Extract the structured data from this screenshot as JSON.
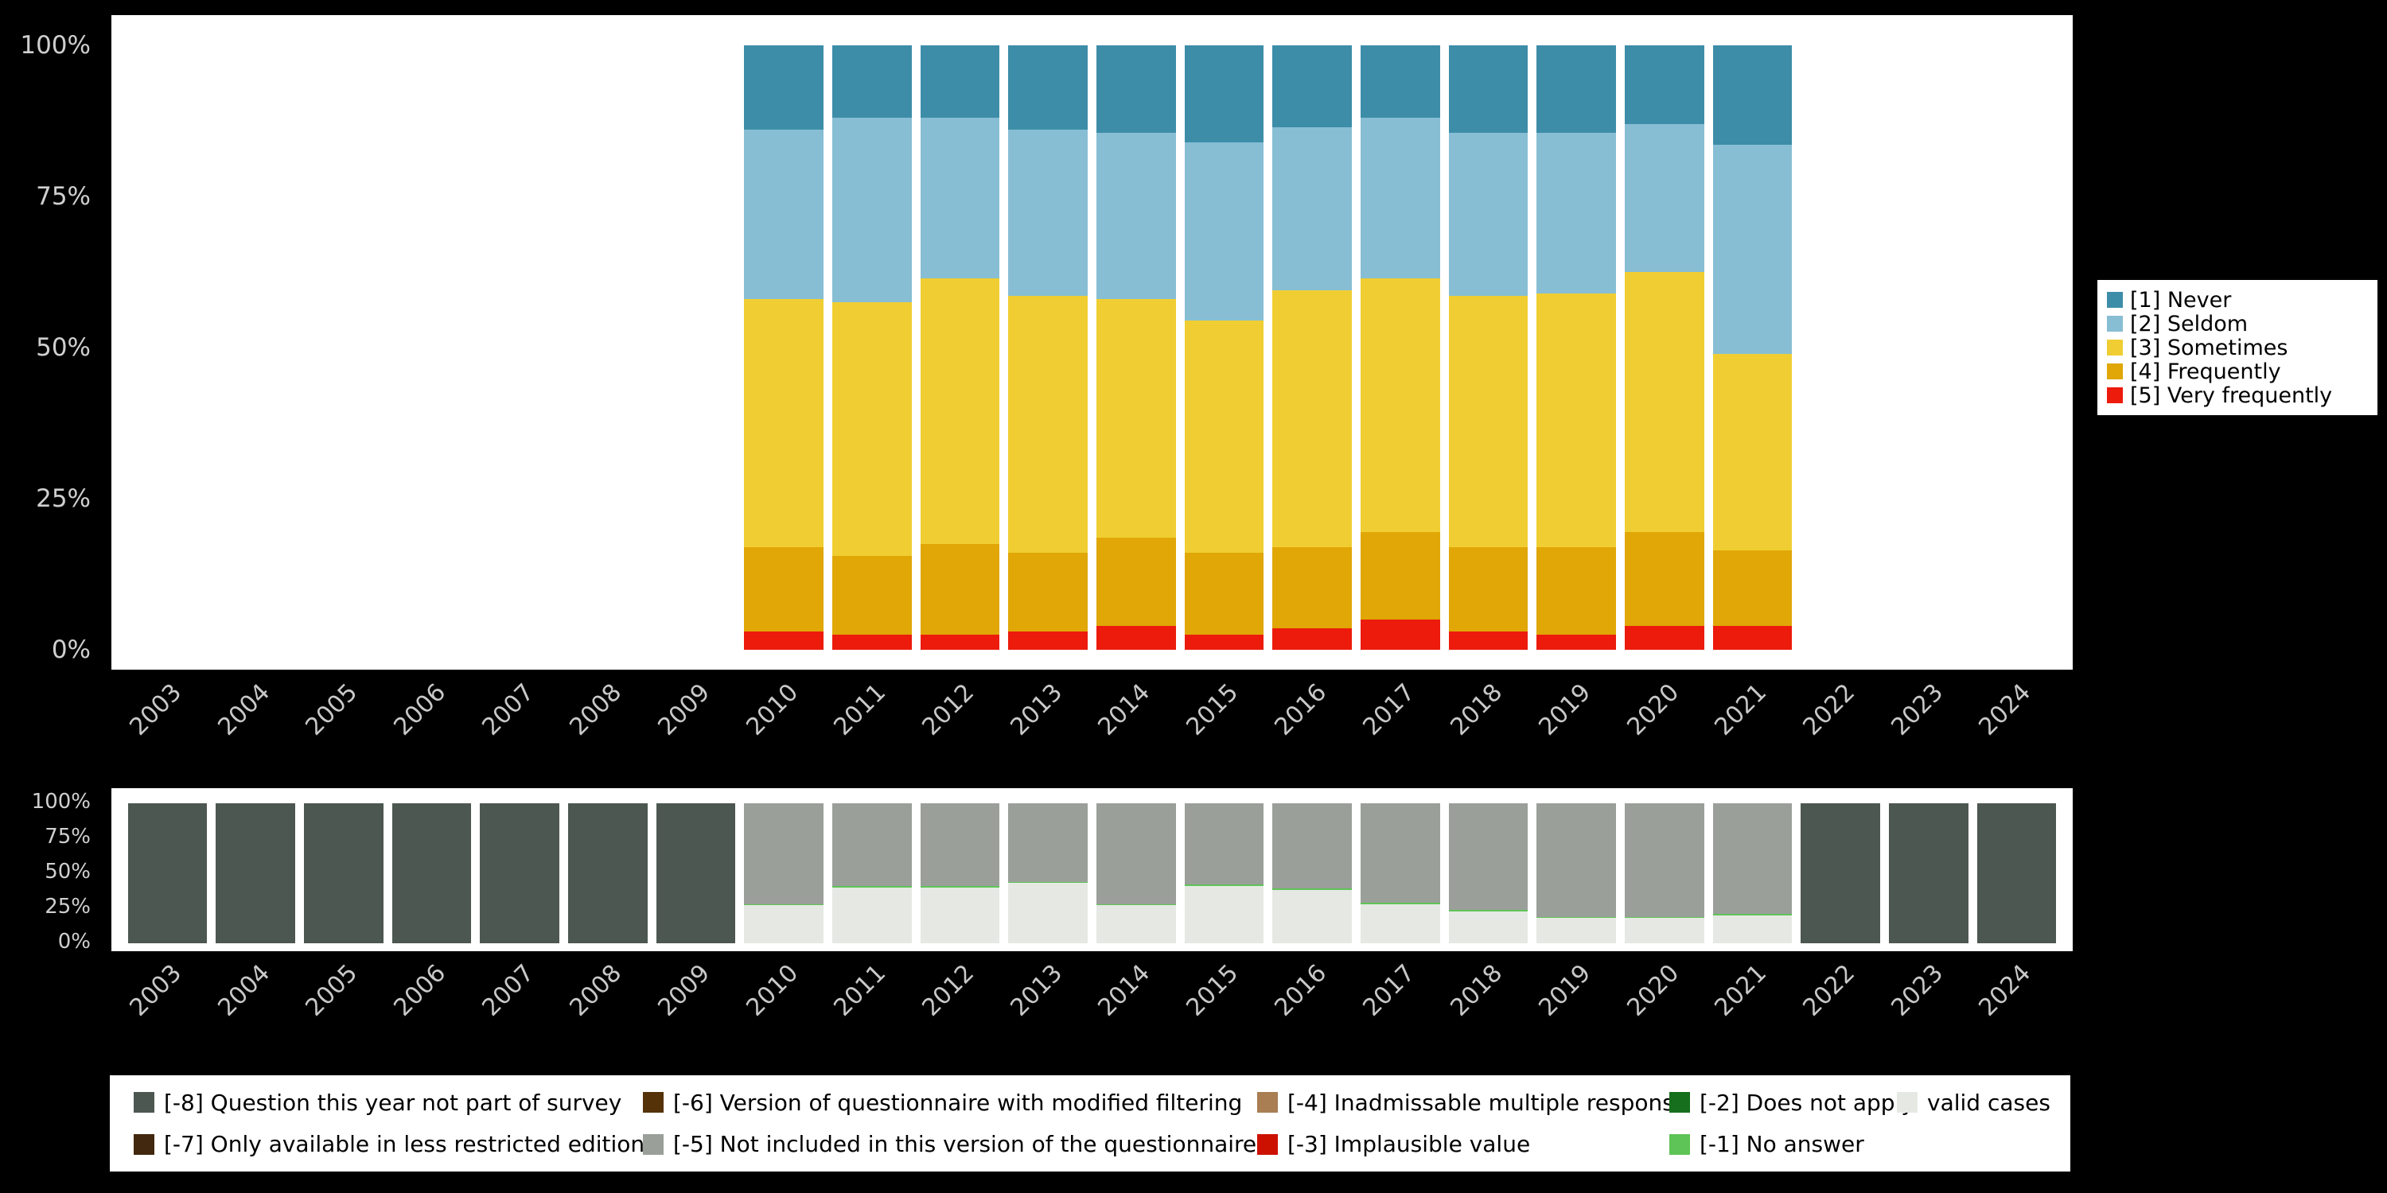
{
  "page": {
    "background": "#000000",
    "panel_background": "#ffffff",
    "axis_text_color": "#c8c8c8"
  },
  "chart_data": [
    {
      "id": "main",
      "type": "bar",
      "stacked": true,
      "unit": "percent",
      "ylim": [
        0,
        100
      ],
      "grid": false,
      "categories": [
        "2003",
        "2004",
        "2005",
        "2006",
        "2007",
        "2008",
        "2009",
        "2010",
        "2011",
        "2012",
        "2013",
        "2014",
        "2015",
        "2016",
        "2017",
        "2018",
        "2019",
        "2020",
        "2021",
        "2022",
        "2023",
        "2024"
      ],
      "yticks": [
        {
          "label": "0%",
          "value": 0
        },
        {
          "label": "25%",
          "value": 25
        },
        {
          "label": "50%",
          "value": 50
        },
        {
          "label": "75%",
          "value": 75
        },
        {
          "label": "100%",
          "value": 100
        }
      ],
      "series": [
        {
          "name": "[5] Very frequently",
          "color": "#ec1b0c",
          "values": [
            0,
            0,
            0,
            0,
            0,
            0,
            0,
            3,
            2.5,
            2.5,
            3,
            4,
            2.5,
            3.5,
            5,
            3,
            2.5,
            4,
            4,
            0,
            0,
            0
          ]
        },
        {
          "name": "[4] Frequently",
          "color": "#e0a706",
          "values": [
            0,
            0,
            0,
            0,
            0,
            0,
            0,
            14,
            13,
            15,
            13,
            14.5,
            13.5,
            13.5,
            14.5,
            14,
            14.5,
            15.5,
            12.5,
            0,
            0,
            0
          ]
        },
        {
          "name": "[3] Sometimes",
          "color": "#f0ce33",
          "values": [
            0,
            0,
            0,
            0,
            0,
            0,
            0,
            41,
            42,
            44,
            42.5,
            39.5,
            38.5,
            42.5,
            42,
            41.5,
            42,
            43,
            32.5,
            0,
            0,
            0
          ]
        },
        {
          "name": "[2] Seldom",
          "color": "#87bed4",
          "values": [
            0,
            0,
            0,
            0,
            0,
            0,
            0,
            28,
            30.5,
            26.5,
            27.5,
            27.5,
            29.5,
            27,
            26.5,
            27,
            26.5,
            24.5,
            34.5,
            0,
            0,
            0
          ]
        },
        {
          "name": "[1] Never",
          "color": "#3d8da8",
          "values": [
            0,
            0,
            0,
            0,
            0,
            0,
            0,
            14,
            12,
            12,
            14,
            14.5,
            16,
            13.5,
            12,
            14.5,
            14.5,
            13,
            16.5,
            0,
            0,
            0
          ]
        }
      ],
      "legend": {
        "position": "right",
        "items": [
          {
            "label": "[1] Never",
            "color": "#3d8da8"
          },
          {
            "label": "[2] Seldom",
            "color": "#87bed4"
          },
          {
            "label": "[3] Sometimes",
            "color": "#f0ce33"
          },
          {
            "label": "[4] Frequently",
            "color": "#e0a706"
          },
          {
            "label": "[5] Very frequently",
            "color": "#ec1b0c"
          }
        ]
      }
    },
    {
      "id": "missing",
      "type": "bar",
      "stacked": true,
      "unit": "percent",
      "ylim": [
        0,
        100
      ],
      "grid": false,
      "categories": [
        "2003",
        "2004",
        "2005",
        "2006",
        "2007",
        "2008",
        "2009",
        "2010",
        "2011",
        "2012",
        "2013",
        "2014",
        "2015",
        "2016",
        "2017",
        "2018",
        "2019",
        "2020",
        "2021",
        "2022",
        "2023",
        "2024"
      ],
      "yticks": [
        {
          "label": "0%",
          "value": 0
        },
        {
          "label": "25%",
          "value": 25
        },
        {
          "label": "50%",
          "value": 50
        },
        {
          "label": "75%",
          "value": 75
        },
        {
          "label": "100%",
          "value": 100
        }
      ],
      "series": [
        {
          "name": "valid cases",
          "color": "#e6e9e3",
          "values": [
            0,
            0,
            0,
            0,
            0,
            0,
            0,
            27,
            40,
            40,
            43,
            27,
            41,
            38,
            28,
            23,
            18,
            18,
            20,
            0,
            0,
            0
          ]
        },
        {
          "name": "[-1] No answer",
          "color": "#5ec457",
          "values": [
            0,
            0,
            0,
            0,
            0,
            0,
            0,
            1,
            1,
            1,
            1,
            1,
            1,
            1,
            1,
            1,
            1,
            1,
            1,
            0,
            0,
            0
          ]
        },
        {
          "name": "[-5] Not included in this version of the questionnaire",
          "color": "#9b9f9a",
          "values": [
            0,
            0,
            0,
            0,
            0,
            0,
            0,
            72,
            59,
            59,
            56,
            72,
            58,
            61,
            71,
            76,
            81,
            81,
            79,
            0,
            0,
            0
          ]
        },
        {
          "name": "[-8] Question this year not part of survey",
          "color": "#4d5751",
          "values": [
            100,
            100,
            100,
            100,
            100,
            100,
            100,
            0,
            0,
            0,
            0,
            0,
            0,
            0,
            0,
            0,
            0,
            0,
            0,
            100,
            100,
            100
          ]
        }
      ]
    }
  ],
  "missing_legend": {
    "items": [
      {
        "label": "[-8] Question this year not part of survey",
        "color": "#4d5751"
      },
      {
        "label": "[-6] Version of questionnaire with modified filtering",
        "color": "#553208"
      },
      {
        "label": "[-4] Inadmissable multiple response",
        "color": "#a87e52"
      },
      {
        "label": "[-2] Does not apply",
        "color": "#156f1c"
      },
      {
        "label": "valid cases",
        "color": "#e6e9e3"
      },
      {
        "label": "[-7] Only available in less restricted edition",
        "color": "#42280e"
      },
      {
        "label": "[-5] Not included in this version of the questionnaire",
        "color": "#9b9f9a"
      },
      {
        "label": "[-3] Implausible value",
        "color": "#cc1100"
      },
      {
        "label": "[-1] No answer",
        "color": "#5ec457"
      }
    ]
  }
}
